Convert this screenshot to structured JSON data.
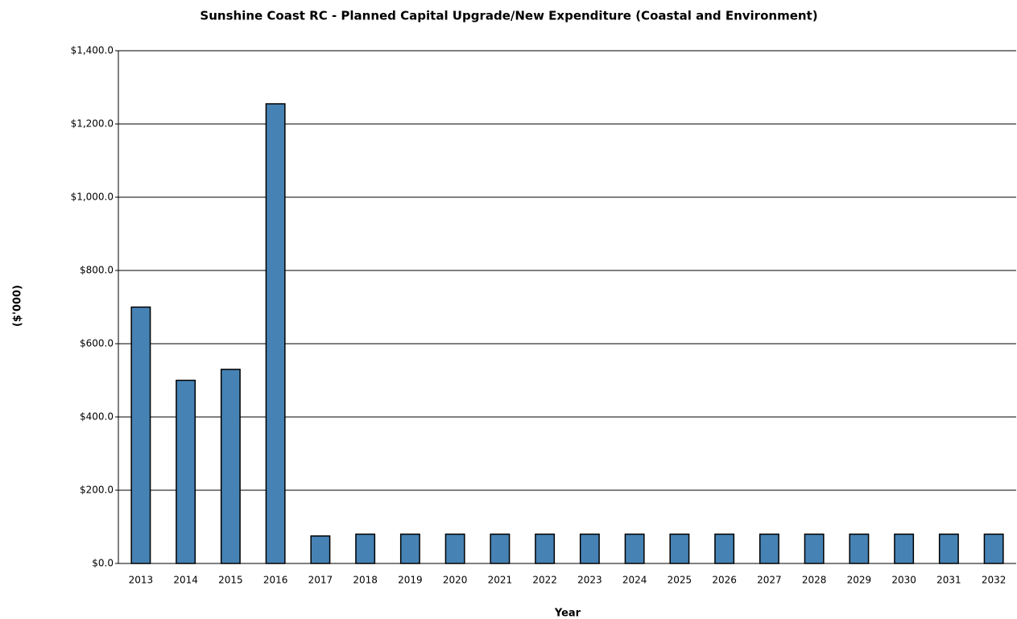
{
  "chart_data": {
    "type": "bar",
    "title": "Sunshine Coast RC - Planned Capital Upgrade/New Expenditure (Coastal and Environment)",
    "x_label": "Year",
    "y_label": "($'000)",
    "categories": [
      "2013",
      "2014",
      "2015",
      "2016",
      "2017",
      "2018",
      "2019",
      "2020",
      "2021",
      "2022",
      "2023",
      "2024",
      "2025",
      "2026",
      "2027",
      "2028",
      "2029",
      "2030",
      "2031",
      "2032"
    ],
    "values": [
      700,
      500,
      530,
      1255,
      75,
      80,
      80,
      80,
      80,
      80,
      80,
      80,
      80,
      80,
      80,
      80,
      80,
      80,
      80,
      80
    ],
    "color": "#4682b4",
    "ylim": [
      0,
      1400
    ],
    "yticks": [
      {
        "value": 0,
        "label": "$0.0"
      },
      {
        "value": 200,
        "label": "$200.0"
      },
      {
        "value": 400,
        "label": "$400.0"
      },
      {
        "value": 600,
        "label": "$600.0"
      },
      {
        "value": 800,
        "label": "$800.0"
      },
      {
        "value": 1000,
        "label": "$1,000.0"
      },
      {
        "value": 1200,
        "label": "$1,200.0"
      },
      {
        "value": 1400,
        "label": "$1,400.0"
      }
    ],
    "grid": true
  }
}
